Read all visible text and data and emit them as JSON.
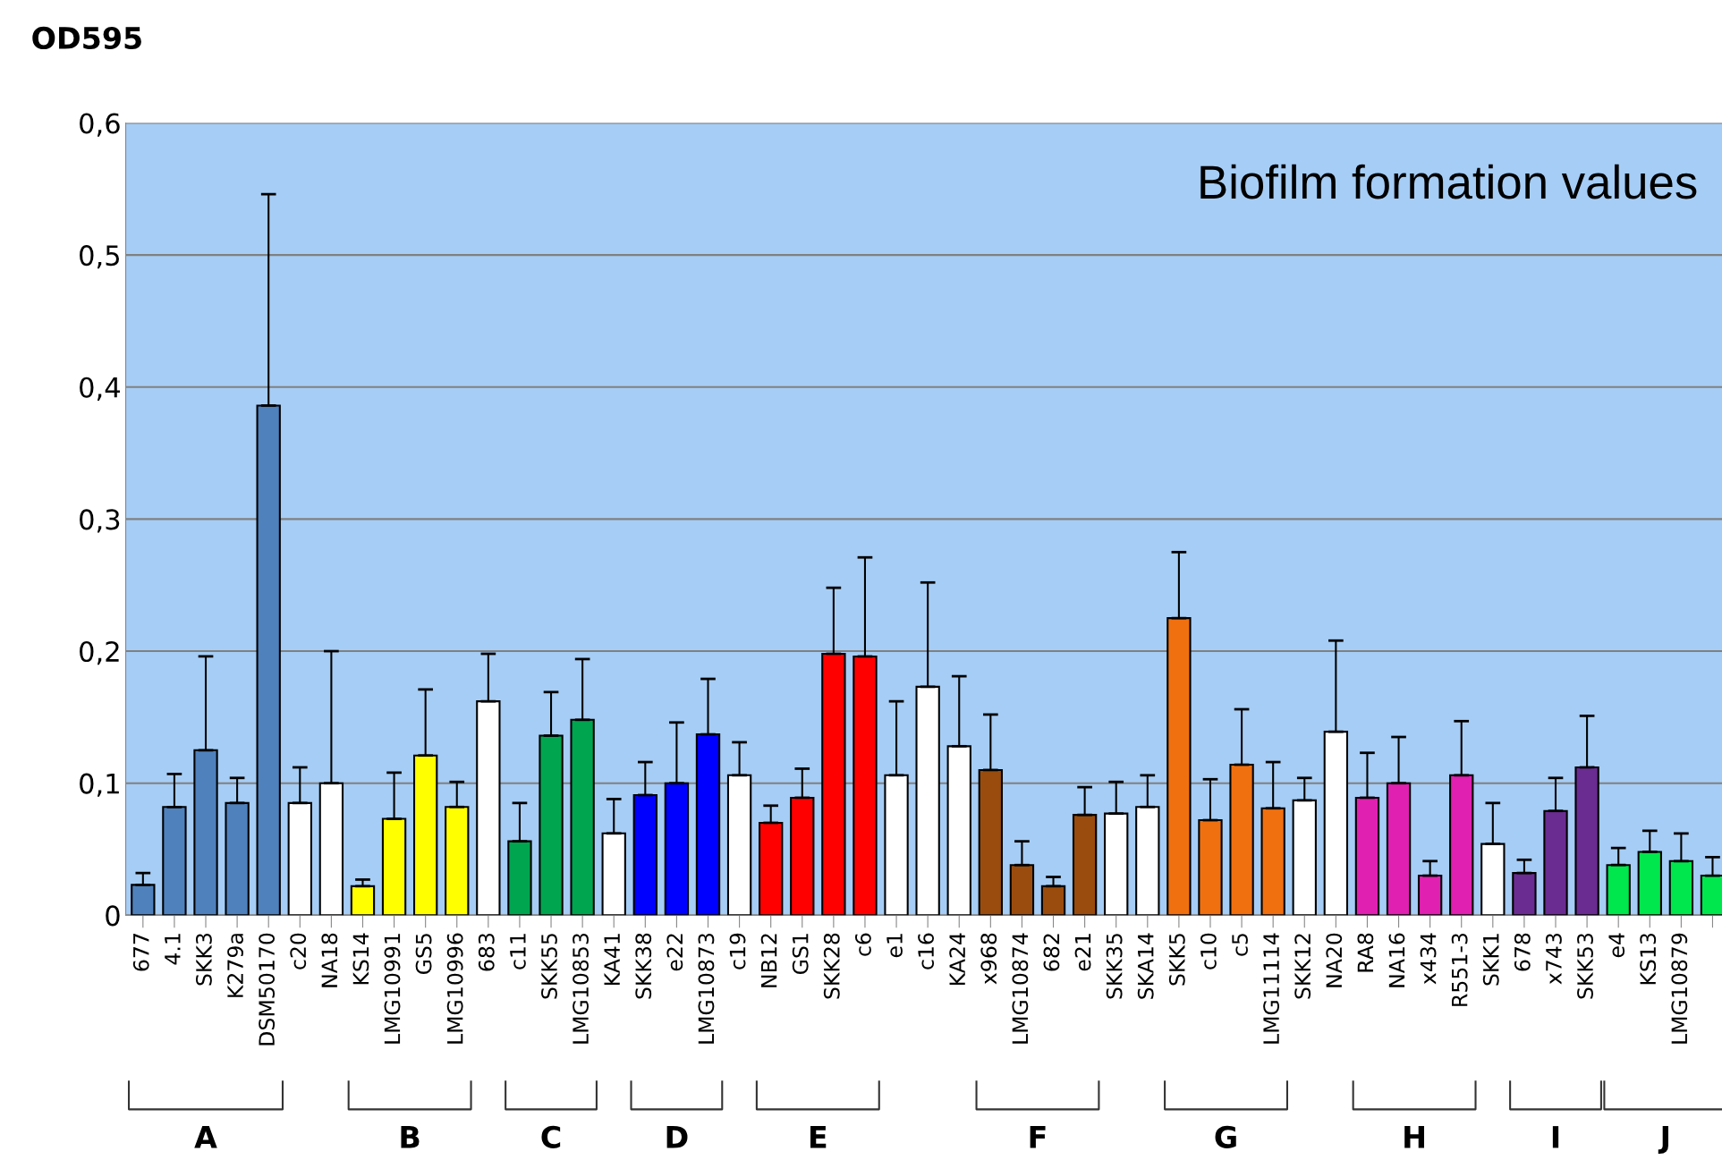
{
  "chart_data": {
    "type": "bar",
    "title": "Biofilm formation values",
    "ylabel": "OD595",
    "categories": [
      "677",
      "4.1",
      "SKK3",
      "K279a",
      "DSM50170",
      "c20",
      "NA18",
      "KS14",
      "LMG10991",
      "GS5",
      "LMG10996",
      "683",
      "c11",
      "SKK55",
      "LMG10853",
      "KA41",
      "SKK38",
      "e22",
      "LMG10873",
      "c19",
      "NB12",
      "GS1",
      "SKK28",
      "c6",
      "e1",
      "c16",
      "KA24",
      "x968",
      "LMG10874",
      "682",
      "e21",
      "SKK35",
      "SKA14",
      "SKK5",
      "c10",
      "c5",
      "LMG11114",
      "SKK12",
      "NA20",
      "RA8",
      "NA16",
      "x434",
      "R551-3",
      "SKK1",
      "678",
      "x743",
      "SKK53",
      "e4",
      "KS13",
      "LMG10879",
      null
    ],
    "values": [
      0.023,
      0.082,
      0.125,
      0.085,
      0.386,
      0.085,
      0.1,
      0.022,
      0.073,
      0.121,
      0.082,
      0.162,
      0.056,
      0.136,
      0.148,
      0.062,
      0.091,
      0.1,
      0.137,
      0.106,
      0.07,
      0.089,
      0.198,
      0.196,
      0.106,
      0.173,
      0.128,
      0.11,
      0.038,
      0.022,
      0.076,
      0.077,
      0.082,
      0.225,
      0.072,
      0.114,
      0.081,
      0.087,
      0.139,
      0.089,
      0.1,
      0.03,
      0.106,
      0.054,
      0.032,
      0.079,
      0.112,
      0.038,
      0.048,
      0.041,
      0.03
    ],
    "errors": [
      [
        0.023,
        0.032
      ],
      [
        0.082,
        0.107
      ],
      [
        0.125,
        0.196
      ],
      [
        0.085,
        0.104
      ],
      [
        0.386,
        0.546
      ],
      [
        0.085,
        0.112
      ],
      [
        0.1,
        0.2
      ],
      [
        0.022,
        0.027
      ],
      [
        0.073,
        0.108
      ],
      [
        0.121,
        0.171
      ],
      [
        0.082,
        0.101
      ],
      [
        0.162,
        0.198
      ],
      [
        0.056,
        0.085
      ],
      [
        0.136,
        0.169
      ],
      [
        0.148,
        0.194
      ],
      [
        0.062,
        0.088
      ],
      [
        0.091,
        0.116
      ],
      [
        0.1,
        0.146
      ],
      [
        0.137,
        0.179
      ],
      [
        0.106,
        0.131
      ],
      [
        0.07,
        0.083
      ],
      [
        0.089,
        0.111
      ],
      [
        0.198,
        0.248
      ],
      [
        0.196,
        0.271
      ],
      [
        0.106,
        0.162
      ],
      [
        0.173,
        0.252
      ],
      [
        0.128,
        0.181
      ],
      [
        0.11,
        0.152
      ],
      [
        0.038,
        0.056
      ],
      [
        0.022,
        0.029
      ],
      [
        0.076,
        0.097
      ],
      [
        0.077,
        0.101
      ],
      [
        0.082,
        0.106
      ],
      [
        0.225,
        0.275
      ],
      [
        0.072,
        0.103
      ],
      [
        0.114,
        0.156
      ],
      [
        0.081,
        0.116
      ],
      [
        0.087,
        0.104
      ],
      [
        0.139,
        0.208
      ],
      [
        0.089,
        0.123
      ],
      [
        0.1,
        0.135
      ],
      [
        0.03,
        0.041
      ],
      [
        0.106,
        0.147
      ],
      [
        0.054,
        0.085
      ],
      [
        0.032,
        0.042
      ],
      [
        0.079,
        0.104
      ],
      [
        0.112,
        0.151
      ],
      [
        0.038,
        0.051
      ],
      [
        0.048,
        0.064
      ],
      [
        0.041,
        0.062
      ],
      [
        0.03,
        0.044
      ]
    ],
    "colors": [
      "#4f81bd",
      "#4f81bd",
      "#4f81bd",
      "#4f81bd",
      "#4f81bd",
      "#ffffff",
      "#ffffff",
      "#ffff00",
      "#ffff00",
      "#ffff00",
      "#ffff00",
      "#ffffff",
      "#00a550",
      "#00a550",
      "#00a550",
      "#ffffff",
      "#0000ff",
      "#0000ff",
      "#0000ff",
      "#ffffff",
      "#ff0000",
      "#ff0000",
      "#ff0000",
      "#ff0000",
      "#ffffff",
      "#ffffff",
      "#ffffff",
      "#994c0d",
      "#994c0d",
      "#994c0d",
      "#994c0d",
      "#ffffff",
      "#ffffff",
      "#f07010",
      "#f07010",
      "#f07010",
      "#f07010",
      "#ffffff",
      "#ffffff",
      "#e020b0",
      "#e020b0",
      "#e020b0",
      "#e020b0",
      "#ffffff",
      "#6a2c91",
      "#6a2c91",
      "#6a2c91",
      "#00e64d",
      "#00e64d",
      "#00e64d",
      "#00e64d"
    ],
    "annotations": [
      "A",
      "B",
      "C",
      "D",
      "E",
      "F",
      "G",
      "H",
      "I",
      "J"
    ],
    "ylim": [
      0,
      0.6
    ],
    "yticks": [
      {
        "value": 0,
        "label": "0"
      },
      {
        "value": 0.1,
        "label": "0,1"
      },
      {
        "value": 0.2,
        "label": "0,2"
      },
      {
        "value": 0.3,
        "label": "0,3"
      },
      {
        "value": 0.4,
        "label": "0,4"
      },
      {
        "value": 0.5,
        "label": "0,5"
      },
      {
        "value": 0.6,
        "label": "0,6"
      }
    ],
    "grid": "y"
  }
}
